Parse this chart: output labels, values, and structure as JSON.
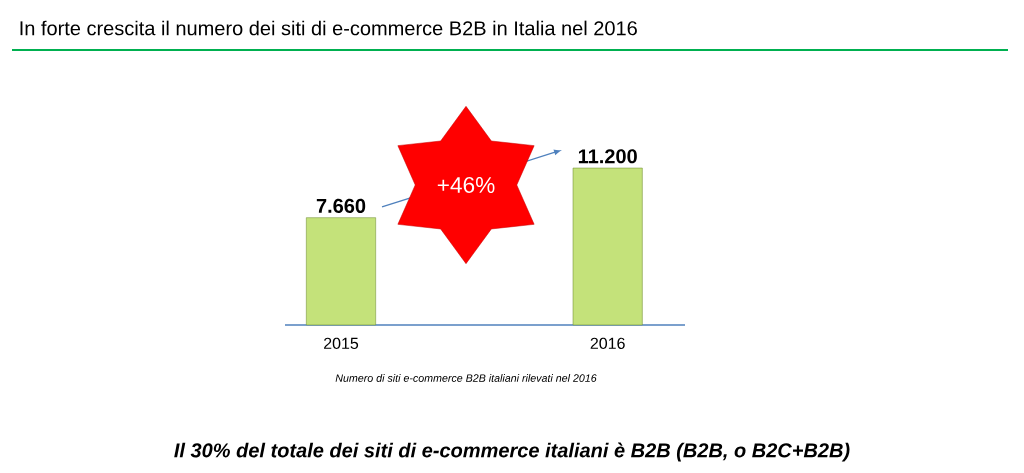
{
  "chart_data": {
    "type": "bar",
    "title": "In forte crescita il numero dei siti di e-commerce B2B in Italia nel 2016",
    "categories": [
      "2015",
      "2016"
    ],
    "values": [
      7660,
      11200
    ],
    "value_labels": [
      "7.660",
      "11.200"
    ],
    "color": "#c4e27a",
    "annotations": [
      "+46%",
      "Numero di siti e-commerce B2B italiani rilevati nel 2016",
      "Il 30% del totale dei siti di e-commerce italiani è B2B (B2B, o B2C+B2B)"
    ]
  }
}
